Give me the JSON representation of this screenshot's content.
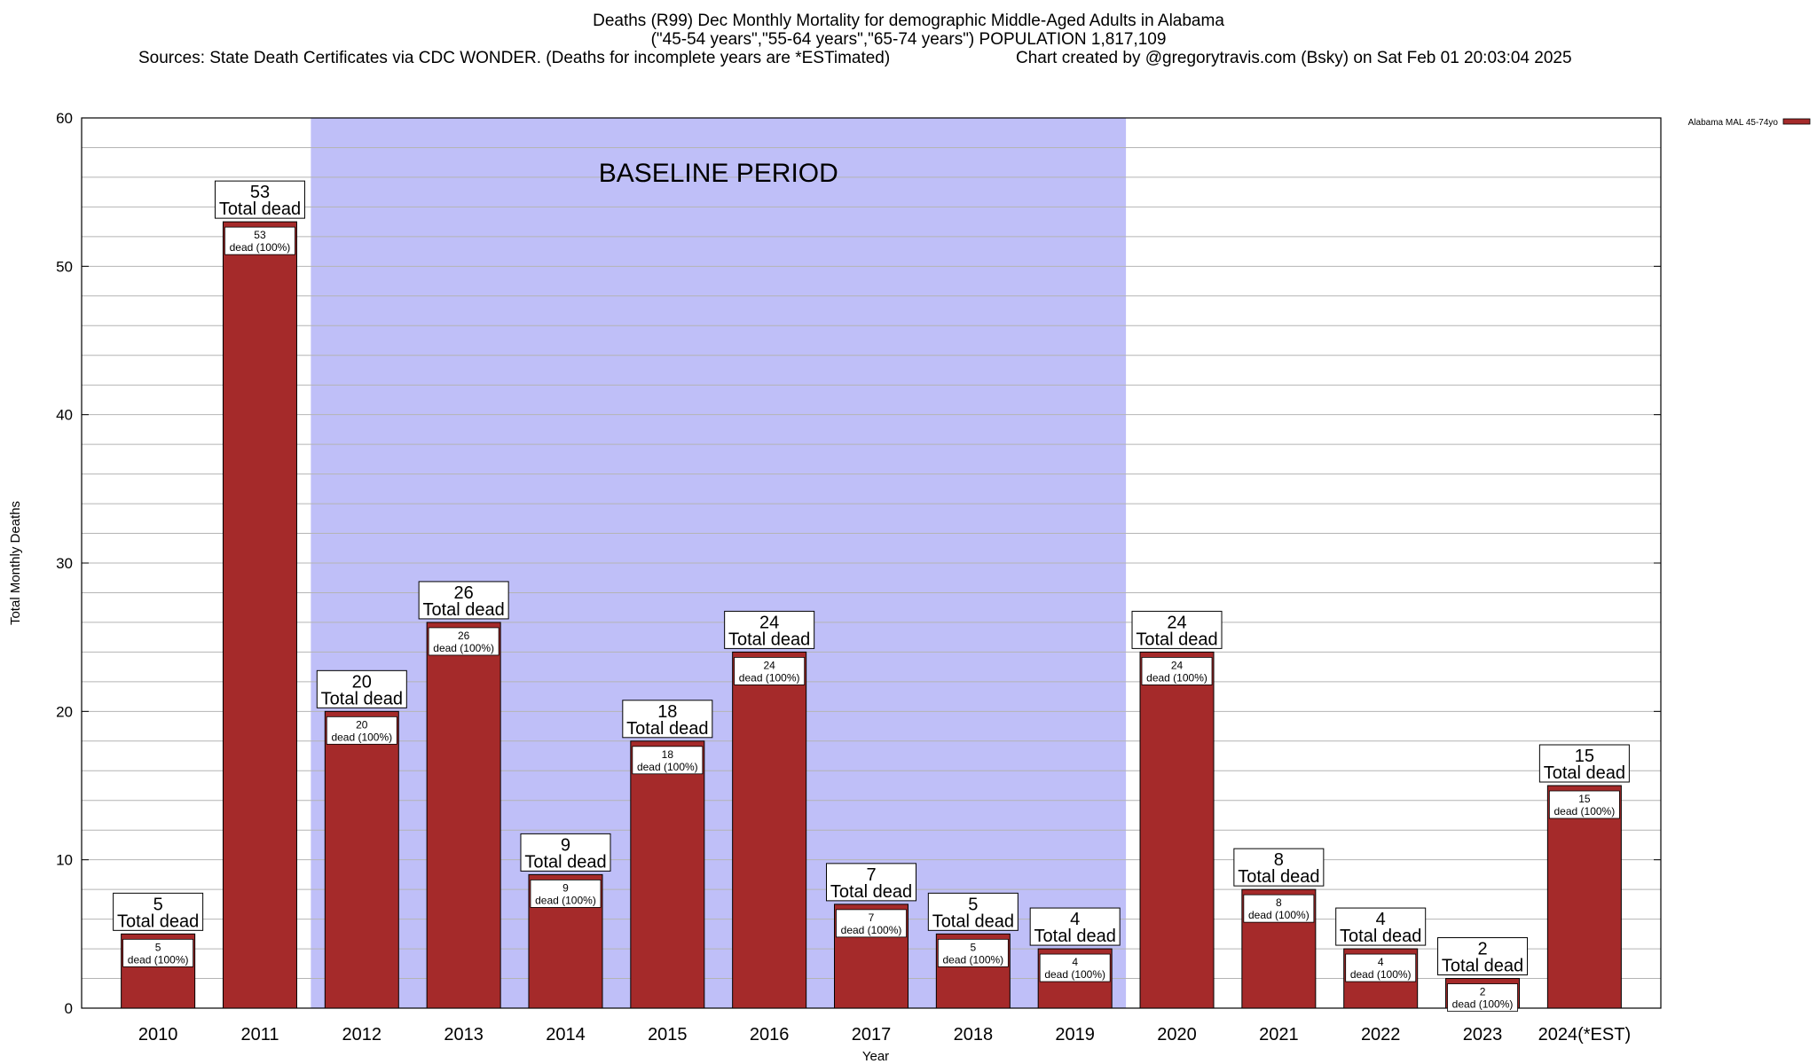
{
  "titles": {
    "line1": "Deaths (R99) Dec Monthly Mortality for demographic Middle-Aged Adults in Alabama",
    "line2": "(\"45-54 years\",\"55-64 years\",\"65-74 years\") POPULATION 1,817,109",
    "line3_sources": "Sources: State Death Certificates via CDC WONDER. (Deaths for incomplete years are *ESTimated)",
    "line3_credit": "Chart created by @gregorytravis.com (Bsky) on Sat Feb 01 20:03:04 2025"
  },
  "chart_data": {
    "type": "bar",
    "xlabel": "Year",
    "ylabel": "Total Monthly Deaths",
    "ylim": [
      0,
      60
    ],
    "yticks": [
      0,
      10,
      20,
      30,
      40,
      50,
      60
    ],
    "minor_grid_step": 2,
    "grid": true,
    "legend_position": "top-right",
    "categories": [
      "2010",
      "2011",
      "2012",
      "2013",
      "2014",
      "2015",
      "2016",
      "2017",
      "2018",
      "2019",
      "2020",
      "2021",
      "2022",
      "2023",
      "2024(*EST)"
    ],
    "series": [
      {
        "name": "Alabama MAL 45-74yo",
        "color": "#a52a2a",
        "values": [
          5,
          53,
          20,
          26,
          9,
          18,
          24,
          7,
          5,
          4,
          24,
          8,
          4,
          2,
          15
        ]
      }
    ],
    "bar_label_main": "Total dead",
    "bar_label_inner": "dead (100%)",
    "annotation": {
      "text": "BASELINE PERIOD",
      "from_category": "2012",
      "to_category": "2019",
      "shade_color": "#bfbff8"
    }
  }
}
